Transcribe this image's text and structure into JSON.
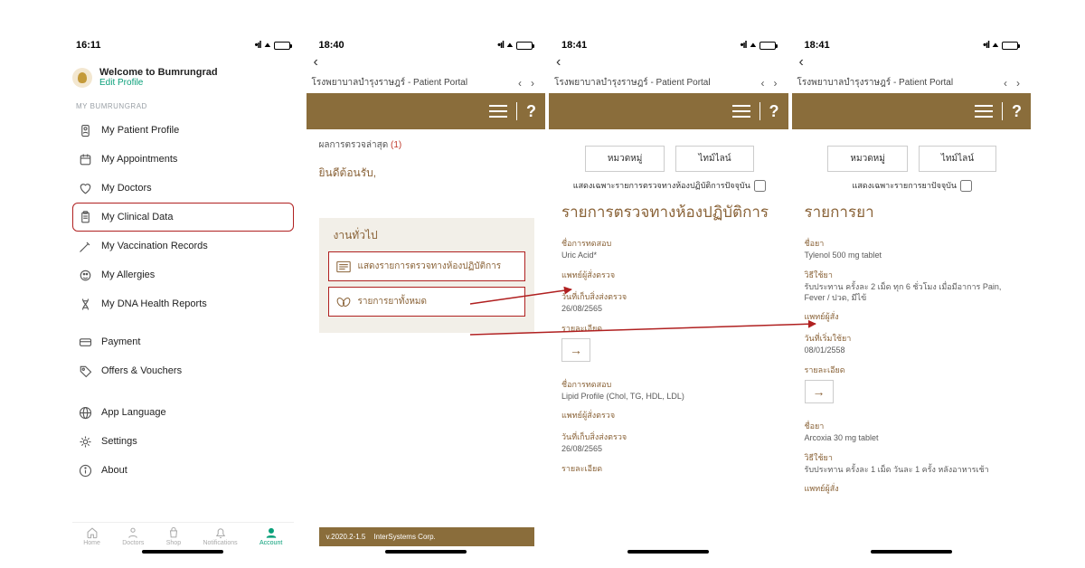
{
  "colors": {
    "brown": "#8a6d3b",
    "brown_text": "#8a6338",
    "highlight_border": "#b02020",
    "accent_teal": "#0aa07a",
    "muted": "#9aa0a6"
  },
  "screen1": {
    "status_time": "16:11",
    "battery_pct": 55,
    "welcome": "Welcome to Bumrungrad",
    "edit_profile": "Edit Profile",
    "section_label": "MY BUMRUNGRAD",
    "menu": [
      {
        "icon": "patient",
        "label": "My Patient Profile"
      },
      {
        "icon": "calendar",
        "label": "My Appointments"
      },
      {
        "icon": "heart",
        "label": "My Doctors"
      },
      {
        "icon": "clipboard",
        "label": "My Clinical Data",
        "selected": true
      },
      {
        "icon": "syringe",
        "label": "My Vaccination Records"
      },
      {
        "icon": "allergy",
        "label": "My Allergies"
      },
      {
        "icon": "dna",
        "label": "My DNA Health Reports"
      }
    ],
    "menu2": [
      {
        "icon": "card",
        "label": "Payment"
      },
      {
        "icon": "tag",
        "label": "Offers & Vouchers"
      }
    ],
    "menu3": [
      {
        "icon": "globe",
        "label": "App Language"
      },
      {
        "icon": "gear",
        "label": "Settings"
      },
      {
        "icon": "info",
        "label": "About"
      }
    ],
    "tabs": [
      {
        "label": "Home"
      },
      {
        "label": "Doctors"
      },
      {
        "label": "Shop"
      },
      {
        "label": "Notifications"
      },
      {
        "label": "Account",
        "active": true
      }
    ]
  },
  "screen2": {
    "status_time": "18:40",
    "battery_pct": 60,
    "portal_title": "โรงพยาบาลบำรุงราษฎร์ - Patient Portal",
    "results_label": "ผลการตรวจล่าสุด",
    "results_count": "(1)",
    "welcome_line": "ยินดีต้อนรับ,",
    "section_title": "งานทั่วไป",
    "action1": "แสดงรายการตรวจทางห้องปฏิบัติการ",
    "action2": "รายการยาทั้งหมด",
    "footer_version": "v.2020.2-1.5",
    "footer_text": "InterSystems Corp."
  },
  "screen3": {
    "status_time": "18:41",
    "battery_pct": 60,
    "portal_title": "โรงพยาบาลบำรุงราษฎร์ - Patient Portal",
    "pill_left": "หมวดหมู่",
    "pill_right": "ไทม์ไลน์",
    "check_label": "แสดงเฉพาะรายการตรวจทางห้องปฏิบัติการปัจจุบัน",
    "page_title": "รายการตรวจทางห้องปฏิบัติการ",
    "records": [
      {
        "f1_label": "ชื่อการทดสอบ",
        "f1_val": "Uric Acid*",
        "f2_label": "แพทย์ผู้สั่งตรวจ",
        "f3_label": "วันที่เก็บสิ่งส่งตรวจ",
        "f3_val": "26/08/2565",
        "f4_label": "รายละเอียด"
      },
      {
        "f1_label": "ชื่อการทดสอบ",
        "f1_val": "Lipid Profile (Chol, TG, HDL, LDL)",
        "f2_label": "แพทย์ผู้สั่งตรวจ",
        "f3_label": "วันที่เก็บสิ่งส่งตรวจ",
        "f3_val": "26/08/2565",
        "f4_label": "รายละเอียด"
      }
    ]
  },
  "screen4": {
    "status_time": "18:41",
    "battery_pct": 60,
    "portal_title": "โรงพยาบาลบำรุงราษฎร์ - Patient Portal",
    "pill_left": "หมวดหมู่",
    "pill_right": "ไทม์ไลน์",
    "check_label": "แสดงเฉพาะรายการยาปัจจุบัน",
    "page_title": "รายการยา",
    "records": [
      {
        "name_label": "ชื่อยา",
        "name_val": "Tylenol 500 mg tablet",
        "use_label": "วิธีใช้ยา",
        "use_val": "รับประทาน ครั้งละ 2 เม็ด ทุก 6 ชั่วโมง เมื่อมีอาการ Pain, Fever / ปวด, มีไข้",
        "doctor_label": "แพทย์ผู้สั่ง",
        "start_label": "วันที่เริ่มใช้ยา",
        "start_val": "08/01/2558",
        "detail_label": "รายละเอียด"
      },
      {
        "name_label": "ชื่อยา",
        "name_val": "Arcoxia 30 mg tablet",
        "use_label": "วิธีใช้ยา",
        "use_val": "รับประทาน ครั้งละ 1 เม็ด วันละ 1 ครั้ง หลังอาหารเช้า",
        "doctor_label": "แพทย์ผู้สั่ง"
      }
    ]
  }
}
